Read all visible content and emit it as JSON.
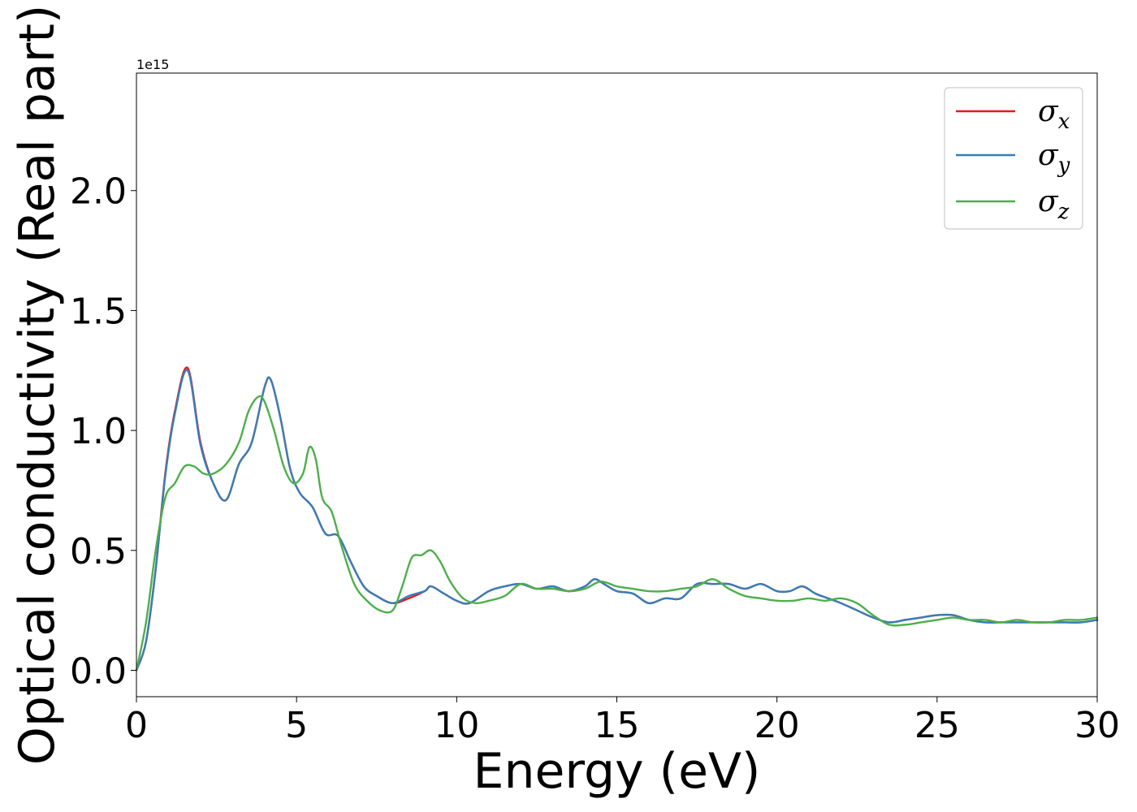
{
  "chart_data": {
    "type": "line",
    "title": "",
    "xlabel": "Energy (eV)",
    "ylabel": "Optical conductivity (Real part)",
    "y_offset_text": "1e15",
    "xlim": [
      0,
      30
    ],
    "ylim": [
      -0.11,
      2.49
    ],
    "xticks": [
      0,
      5,
      10,
      15,
      20,
      25,
      30
    ],
    "xtick_labels": [
      "0",
      "5",
      "10",
      "15",
      "20",
      "25",
      "30"
    ],
    "yticks": [
      0.0,
      0.5,
      1.0,
      1.5,
      2.0
    ],
    "ytick_labels": [
      "0.0",
      "0.5",
      "1.0",
      "1.5",
      "2.0"
    ],
    "grid": false,
    "legend_position": "top-right",
    "series": [
      {
        "name": "σx",
        "symbol": "σ",
        "subscript": "x",
        "color": "#e41a1c",
        "x": [
          0,
          0.3,
          0.6,
          0.9,
          1.2,
          1.6,
          2.0,
          2.4,
          2.8,
          3.2,
          3.6,
          4.0,
          4.2,
          4.5,
          4.8,
          5.1,
          5.5,
          5.9,
          6.3,
          6.7,
          7.1,
          7.5,
          8.0,
          8.5,
          9.0,
          9.2,
          9.6,
          10.0,
          10.4,
          11.0,
          11.5,
          12.0,
          12.5,
          13.0,
          13.5,
          14.0,
          14.3,
          14.6,
          15.0,
          15.5,
          16.0,
          16.5,
          17.0,
          17.5,
          18.0,
          18.5,
          19.0,
          19.5,
          20.0,
          20.4,
          20.8,
          21.2,
          21.6,
          22.0,
          22.5,
          23.0,
          23.5,
          24.0,
          24.5,
          25.0,
          25.5,
          26.0,
          26.5,
          27.0,
          27.5,
          28.0,
          28.5,
          29.0,
          29.5,
          30.0
        ],
        "y": [
          0.0,
          0.12,
          0.42,
          0.82,
          1.08,
          1.26,
          0.95,
          0.78,
          0.71,
          0.86,
          0.95,
          1.18,
          1.21,
          1.05,
          0.84,
          0.74,
          0.68,
          0.57,
          0.56,
          0.45,
          0.35,
          0.31,
          0.28,
          0.3,
          0.33,
          0.35,
          0.32,
          0.29,
          0.28,
          0.33,
          0.35,
          0.36,
          0.34,
          0.35,
          0.33,
          0.35,
          0.38,
          0.36,
          0.33,
          0.32,
          0.28,
          0.3,
          0.3,
          0.36,
          0.36,
          0.36,
          0.34,
          0.36,
          0.33,
          0.33,
          0.35,
          0.32,
          0.3,
          0.28,
          0.25,
          0.22,
          0.2,
          0.21,
          0.22,
          0.23,
          0.23,
          0.21,
          0.2,
          0.2,
          0.2,
          0.2,
          0.2,
          0.2,
          0.2,
          0.21
        ]
      },
      {
        "name": "σy",
        "symbol": "σ",
        "subscript": "y",
        "color": "#377eb8",
        "x": [
          0,
          0.3,
          0.6,
          0.9,
          1.2,
          1.6,
          2.0,
          2.4,
          2.8,
          3.2,
          3.6,
          4.0,
          4.2,
          4.5,
          4.8,
          5.1,
          5.5,
          5.9,
          6.3,
          6.7,
          7.1,
          7.5,
          8.0,
          8.5,
          9.0,
          9.2,
          9.6,
          10.0,
          10.4,
          11.0,
          11.5,
          12.0,
          12.5,
          13.0,
          13.5,
          14.0,
          14.3,
          14.6,
          15.0,
          15.5,
          16.0,
          16.5,
          17.0,
          17.5,
          18.0,
          18.5,
          19.0,
          19.5,
          20.0,
          20.4,
          20.8,
          21.2,
          21.6,
          22.0,
          22.5,
          23.0,
          23.5,
          24.0,
          24.5,
          25.0,
          25.5,
          26.0,
          26.5,
          27.0,
          27.5,
          28.0,
          28.5,
          29.0,
          29.5,
          30.0
        ],
        "y": [
          0.0,
          0.12,
          0.42,
          0.81,
          1.07,
          1.25,
          0.94,
          0.78,
          0.71,
          0.86,
          0.95,
          1.18,
          1.21,
          1.05,
          0.84,
          0.74,
          0.68,
          0.57,
          0.56,
          0.45,
          0.35,
          0.31,
          0.28,
          0.31,
          0.33,
          0.35,
          0.32,
          0.29,
          0.28,
          0.33,
          0.35,
          0.36,
          0.34,
          0.35,
          0.33,
          0.35,
          0.38,
          0.36,
          0.33,
          0.32,
          0.28,
          0.3,
          0.3,
          0.36,
          0.36,
          0.36,
          0.34,
          0.36,
          0.33,
          0.33,
          0.35,
          0.32,
          0.3,
          0.28,
          0.25,
          0.22,
          0.2,
          0.21,
          0.22,
          0.23,
          0.23,
          0.21,
          0.2,
          0.2,
          0.2,
          0.2,
          0.2,
          0.2,
          0.2,
          0.21
        ]
      },
      {
        "name": "σz",
        "symbol": "σ",
        "subscript": "z",
        "color": "#4daf4a",
        "x": [
          0,
          0.3,
          0.6,
          0.9,
          1.2,
          1.5,
          1.8,
          2.1,
          2.4,
          2.8,
          3.2,
          3.5,
          3.8,
          4.0,
          4.3,
          4.6,
          4.9,
          5.2,
          5.4,
          5.6,
          5.8,
          6.1,
          6.4,
          6.8,
          7.2,
          7.6,
          8.0,
          8.3,
          8.6,
          8.9,
          9.2,
          9.5,
          9.8,
          10.2,
          10.6,
          11.0,
          11.5,
          12.0,
          12.5,
          13.0,
          13.5,
          14.0,
          14.5,
          15.0,
          15.5,
          16.0,
          16.5,
          17.0,
          17.5,
          18.0,
          18.5,
          19.0,
          19.5,
          20.0,
          20.5,
          21.0,
          21.5,
          22.0,
          22.5,
          23.0,
          23.5,
          24.0,
          24.5,
          25.0,
          25.5,
          26.0,
          26.5,
          27.0,
          27.5,
          28.0,
          28.5,
          29.0,
          29.5,
          30.0
        ],
        "y": [
          0.0,
          0.2,
          0.5,
          0.72,
          0.78,
          0.85,
          0.85,
          0.82,
          0.82,
          0.86,
          0.95,
          1.08,
          1.14,
          1.12,
          1.0,
          0.85,
          0.78,
          0.82,
          0.93,
          0.88,
          0.72,
          0.66,
          0.52,
          0.36,
          0.29,
          0.25,
          0.25,
          0.35,
          0.47,
          0.48,
          0.5,
          0.45,
          0.37,
          0.3,
          0.28,
          0.29,
          0.31,
          0.36,
          0.34,
          0.34,
          0.33,
          0.34,
          0.37,
          0.35,
          0.34,
          0.33,
          0.33,
          0.34,
          0.35,
          0.38,
          0.34,
          0.31,
          0.3,
          0.29,
          0.29,
          0.3,
          0.29,
          0.3,
          0.28,
          0.23,
          0.19,
          0.19,
          0.2,
          0.21,
          0.22,
          0.21,
          0.21,
          0.2,
          0.21,
          0.2,
          0.2,
          0.21,
          0.21,
          0.22
        ]
      }
    ]
  }
}
